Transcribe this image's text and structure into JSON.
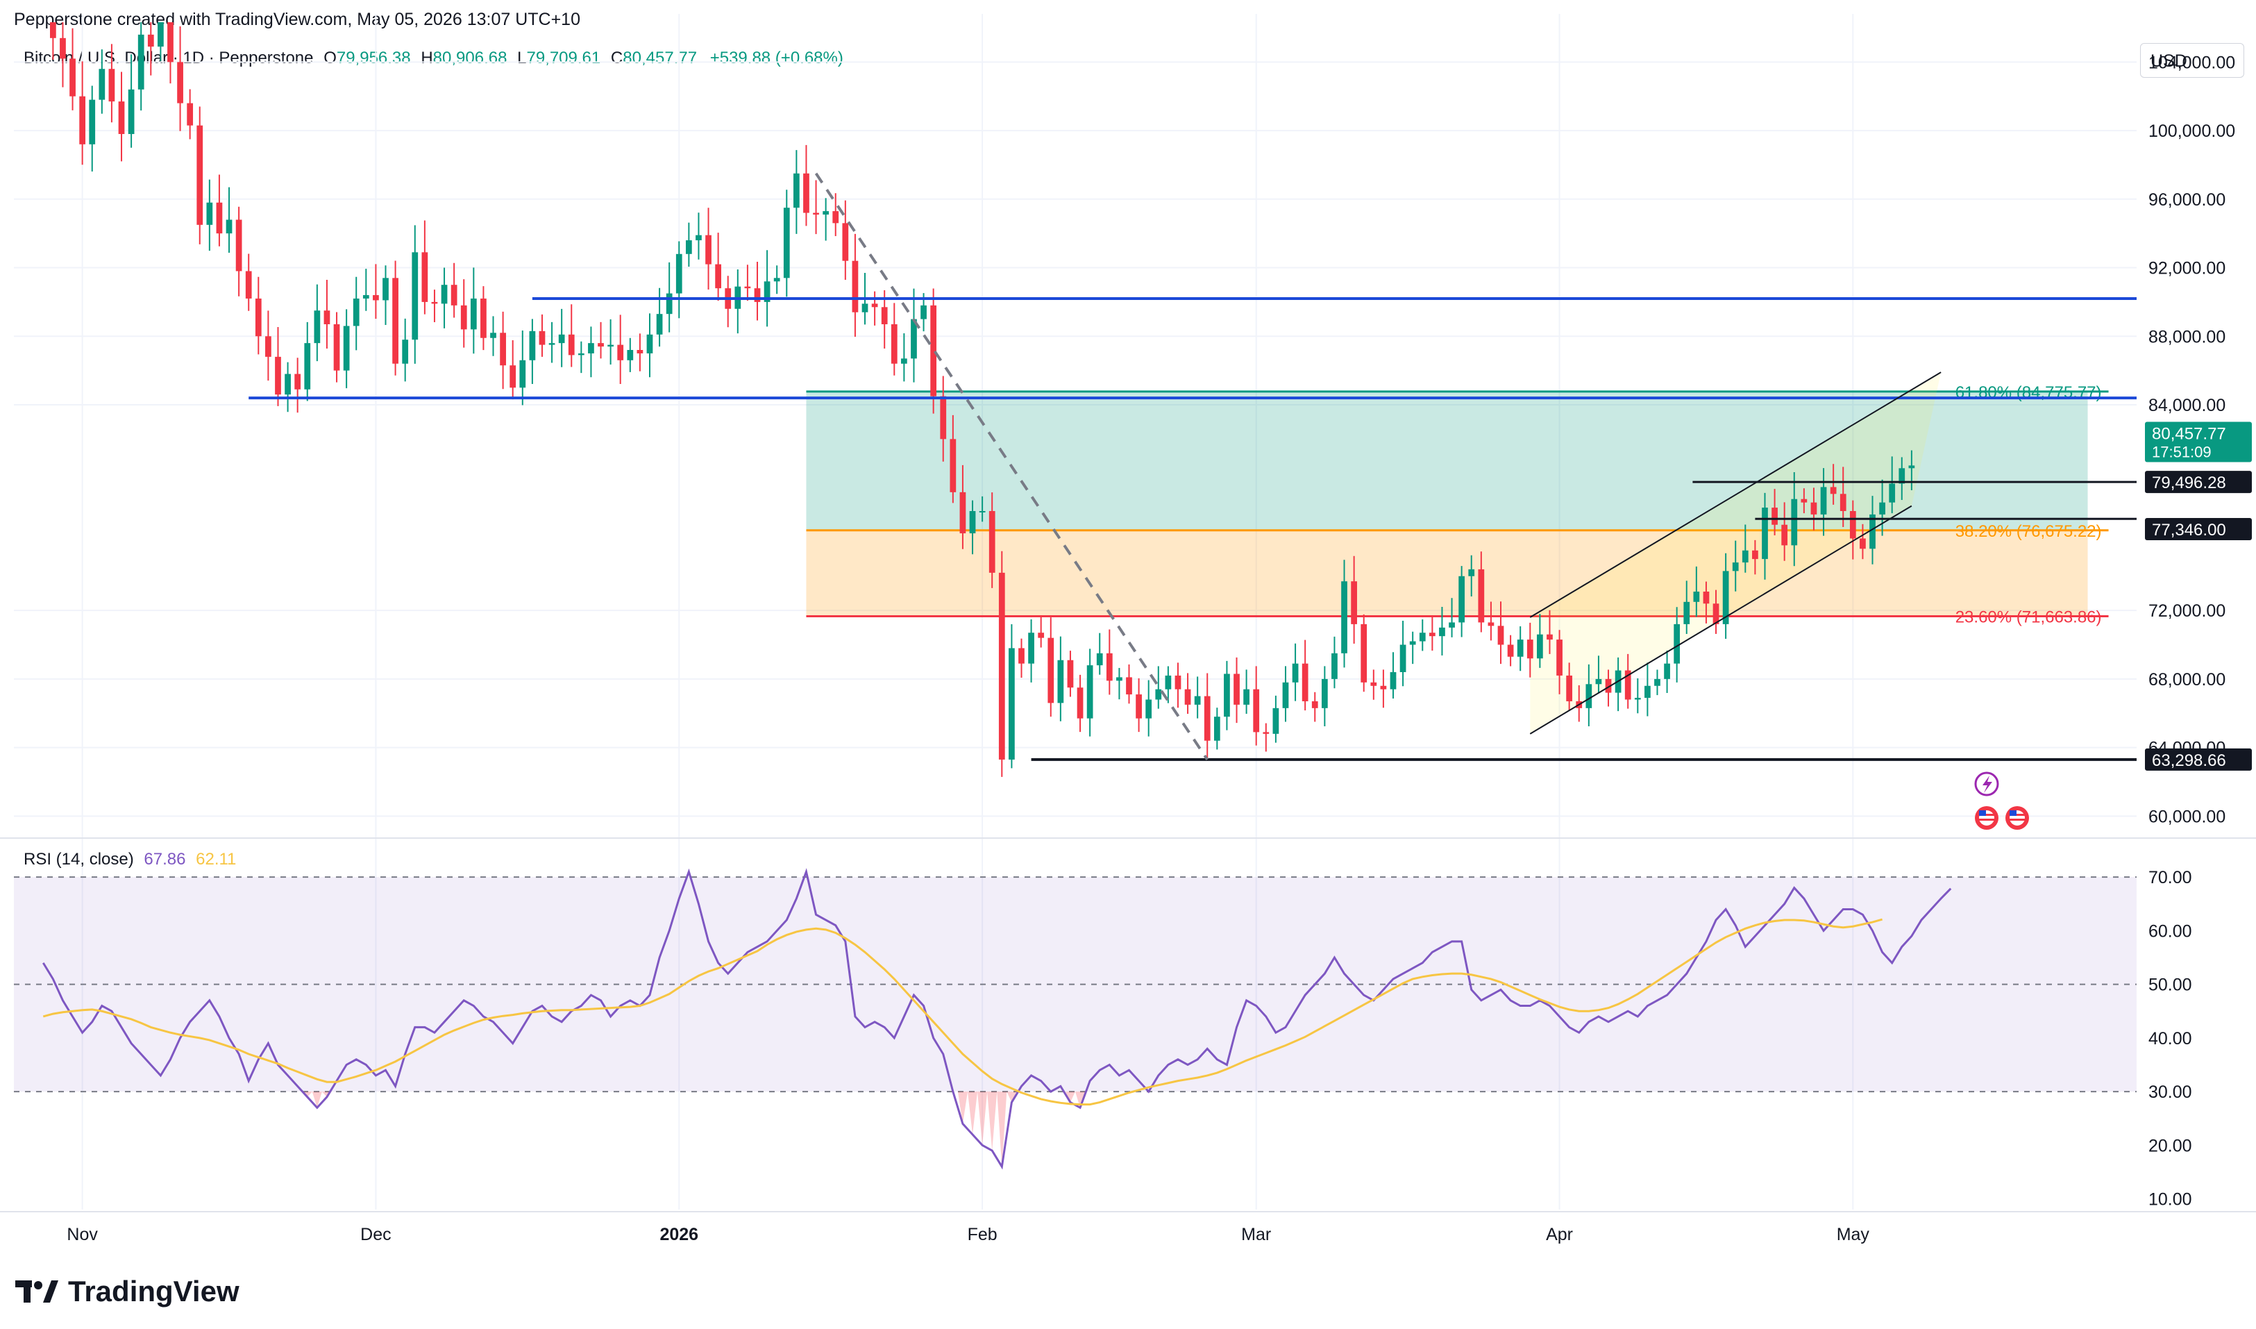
{
  "header": "Pepperstone created with TradingView.com, May 05, 2026 13:07 UTC+10",
  "legend": {
    "symbol": "Bitcoin / U.S. Dollar · 1D · Pepperstone",
    "o_label": "O",
    "o": "79,956.38",
    "h_label": "H",
    "h": "80,906.68",
    "l_label": "L",
    "l": "79,709.61",
    "c_label": "C",
    "c": "80,457.77",
    "change": "+539.88 (+0.68%)"
  },
  "currency": "USD",
  "rsi_legend": {
    "name": "RSI (14, close)",
    "rsi": "67.86",
    "ma": "62.11"
  },
  "brand": "TradingView",
  "colors": {
    "up": "#089981",
    "down": "#f23645",
    "support": "#1c49d8",
    "rsi": "#7e57c2",
    "rsi_ma": "#f7c543"
  },
  "chart_data": [
    {
      "type": "candlestick",
      "ylim": [
        59000,
        106000
      ],
      "ticks": [
        {
          "value": 104000,
          "label": "104,000.00"
        },
        {
          "value": 100000,
          "label": "100,000.00"
        },
        {
          "value": 96000,
          "label": "96,000.00"
        },
        {
          "value": 92000,
          "label": "92,000.00"
        },
        {
          "value": 88000,
          "label": "88,000.00"
        },
        {
          "value": 84000,
          "label": "84,000.00"
        },
        {
          "value": 72000,
          "label": "72,000.00"
        },
        {
          "value": 68000,
          "label": "68,000.00"
        },
        {
          "value": 64000,
          "label": "64,000.00"
        },
        {
          "value": 60000,
          "label": "60,000.00"
        }
      ],
      "x_labels": [
        {
          "date": "2025-11-01",
          "label": "Nov"
        },
        {
          "date": "2025-12-01",
          "label": "Dec"
        },
        {
          "date": "2026-01-01",
          "label": "2026"
        },
        {
          "date": "2026-02-01",
          "label": "Feb"
        },
        {
          "date": "2026-03-01",
          "label": "Mar"
        },
        {
          "date": "2026-04-01",
          "label": "Apr"
        },
        {
          "date": "2026-05-01",
          "label": "May"
        }
      ],
      "x_range": [
        "2025-10-25",
        "2026-05-30"
      ],
      "candles_start": "2025-10-28",
      "closes": [
        108400,
        105400,
        104200,
        102000,
        99200,
        101800,
        103600,
        101700,
        99800,
        102400,
        105600,
        104900,
        107200,
        104000,
        101600,
        100300,
        94500,
        95800,
        94000,
        94800,
        91800,
        90200,
        88000,
        86800,
        84600,
        85800,
        84900,
        87600,
        89500,
        88700,
        86000,
        88600,
        90200,
        90400,
        90100,
        91400,
        86400,
        87800,
        92900,
        90000,
        89900,
        91000,
        89800,
        88400,
        90200,
        87900,
        88200,
        86300,
        85000,
        86600,
        88300,
        87500,
        87600,
        88100,
        86900,
        87000,
        87600,
        87400,
        87500,
        86600,
        87200,
        87000,
        88100,
        89300,
        90500,
        92800,
        93600,
        93900,
        92200,
        90800,
        89600,
        90900,
        90800,
        90000,
        91200,
        91400,
        95500,
        97500,
        95200,
        95100,
        95300,
        94600,
        92400,
        89400,
        89900,
        89700,
        88700,
        86400,
        86700,
        89000,
        89800,
        84500,
        82000,
        78900,
        76500,
        77800,
        77800,
        74200,
        63298,
        69800,
        68900,
        70700,
        70400,
        66600,
        69100,
        67500,
        65700,
        68800,
        69500,
        67900,
        68100,
        67100,
        65700,
        66800,
        67400,
        68200,
        67400,
        66500,
        67000,
        64400,
        65800,
        68300,
        66500,
        67400,
        64900,
        64800,
        66300,
        67800,
        68900,
        66700,
        66300,
        68000,
        69500,
        73700,
        71200,
        67800,
        67600,
        67400,
        68400,
        70000,
        70200,
        70700,
        70500,
        71000,
        71300,
        74000,
        74400,
        71300,
        71100,
        70000,
        69300,
        70300,
        69200,
        70600,
        70300,
        68200,
        66700,
        66300,
        67700,
        68000,
        67200,
        68500,
        66800,
        66900,
        67600,
        68000,
        68900,
        71200,
        72500,
        73100,
        72400,
        71200,
        74300,
        74800,
        75500,
        75000,
        78000,
        77000,
        75800,
        78500,
        78300,
        77600,
        79200,
        78800,
        77800,
        76200,
        75600,
        77600,
        78300,
        79400,
        80300,
        80457.77
      ],
      "support_lines": [
        {
          "value": 90200,
          "from": "2025-12-17",
          "label": ""
        },
        {
          "value": 84400,
          "from": "2025-11-18",
          "label": ""
        },
        {
          "value": 63298.66,
          "from": "2026-02-06",
          "label": "63,298.66"
        }
      ],
      "fibonacci": [
        {
          "level": "61.80%",
          "value": 84775.77,
          "label": "61.80% (84,775.77)"
        },
        {
          "level": "38.20%",
          "value": 76675.22,
          "label": "38.20% (76,675.22)"
        },
        {
          "level": "23.60%",
          "value": 71663.86,
          "label": "23.60% (71,663.86)"
        }
      ],
      "fib_box": {
        "from": "2026-01-14",
        "to": "2026-05-25"
      },
      "horizontal_levels": [
        {
          "value": 79496.28,
          "label": "79,496.28"
        },
        {
          "value": 77346.0,
          "label": "77,346.00"
        }
      ],
      "last_price": {
        "value": 80457.77,
        "label": "80,457.77",
        "countdown": "17:51:09"
      },
      "trend_line": {
        "from": [
          "2026-01-15",
          97500
        ],
        "to": [
          "2026-02-24",
          63298
        ]
      },
      "channel": {
        "lower": {
          "from": [
            "2026-03-29",
            64800
          ],
          "to": [
            "2026-05-07",
            78100
          ]
        },
        "upper": {
          "from": [
            "2026-03-29",
            71600
          ],
          "to": [
            "2026-05-10",
            85900
          ]
        }
      }
    },
    {
      "type": "line",
      "title": "RSI (14, close)",
      "ylim": [
        8,
        73
      ],
      "ticks": [
        {
          "value": 70,
          "label": "70.00"
        },
        {
          "value": 60,
          "label": "60.00"
        },
        {
          "value": 50,
          "label": "50.00"
        },
        {
          "value": 40,
          "label": "40.00"
        },
        {
          "value": 30,
          "label": "30.00"
        },
        {
          "value": 20,
          "label": "20.00"
        },
        {
          "value": 10,
          "label": "10.00"
        }
      ],
      "bands": {
        "upper": 70,
        "middle": 50,
        "lower": 30
      },
      "series": [
        {
          "name": "RSI",
          "values": [
            54,
            51,
            47,
            44,
            41,
            43,
            46,
            45,
            42,
            39,
            37,
            35,
            33,
            36,
            40,
            43,
            45,
            47,
            44,
            40,
            37,
            32,
            36,
            39,
            35,
            33,
            31,
            29,
            27,
            29,
            32,
            35,
            36,
            35,
            33,
            34,
            31,
            37,
            42,
            42,
            41,
            43,
            45,
            47,
            46,
            44,
            43,
            41,
            39,
            42,
            45,
            46,
            44,
            43,
            45,
            46,
            48,
            47,
            44,
            46,
            47,
            46,
            48,
            55,
            60,
            66,
            71,
            65,
            58,
            54,
            52,
            54,
            56,
            57,
            58,
            60,
            62,
            66,
            71,
            63,
            62,
            61,
            58,
            44,
            42,
            43,
            42,
            40,
            44,
            48,
            46,
            40,
            37,
            30,
            24,
            22,
            20,
            19,
            16,
            28,
            31,
            33,
            32,
            30,
            31,
            28,
            27,
            32,
            34,
            35,
            33,
            34,
            32,
            30,
            33,
            35,
            36,
            35,
            36,
            38,
            36,
            35,
            42,
            47,
            46,
            44,
            41,
            42,
            45,
            48,
            50,
            52,
            55,
            52,
            50,
            48,
            47,
            49,
            51,
            52,
            53,
            54,
            56,
            57,
            58,
            58,
            49,
            47,
            48,
            49,
            47,
            46,
            46,
            47,
            46,
            44,
            42,
            41,
            43,
            44,
            43,
            44,
            45,
            44,
            46,
            47,
            48,
            50,
            52,
            55,
            58,
            62,
            64,
            61,
            57,
            59,
            61,
            63,
            65,
            68,
            66,
            63,
            60,
            62,
            64,
            64,
            63,
            60,
            56,
            54,
            57,
            59,
            62,
            64,
            66,
            67.86
          ]
        },
        {
          "name": "RSI-based MA",
          "values": [
            44,
            44.5,
            44.8,
            45,
            45.2,
            45.3,
            45,
            44.5,
            44,
            43.5,
            42.8,
            42,
            41.5,
            41,
            40.6,
            40.3,
            40,
            39.6,
            39,
            38.4,
            37.8,
            37,
            36.4,
            35.8,
            35.2,
            34.4,
            33.7,
            33,
            32.3,
            31.8,
            31.8,
            32.3,
            32.8,
            33.4,
            34,
            34.8,
            35.6,
            36.6,
            37.6,
            38.6,
            39.6,
            40.6,
            41.4,
            42.1,
            42.8,
            43.4,
            43.8,
            44.1,
            44.3,
            44.6,
            44.8,
            45,
            45.1,
            45.2,
            45.2,
            45.3,
            45.4,
            45.5,
            45.6,
            45.7,
            45.8,
            46,
            46.6,
            47.4,
            48.2,
            49.4,
            50.6,
            51.6,
            52.4,
            53,
            53.8,
            54.6,
            55.4,
            56.2,
            57.4,
            58.4,
            59.2,
            59.8,
            60.2,
            60.4,
            60.2,
            59.6,
            58.6,
            57.4,
            56,
            54.4,
            52.8,
            51,
            49,
            47,
            45,
            43,
            41,
            39,
            37,
            35.4,
            33.8,
            32.4,
            31.4,
            30.6,
            29.8,
            29.2,
            28.6,
            28.2,
            27.9,
            27.7,
            27.6,
            27.6,
            28,
            28.6,
            29.2,
            29.8,
            30.3,
            30.8,
            31.2,
            31.6,
            32,
            32.3,
            32.6,
            33,
            33.5,
            34.2,
            35,
            35.8,
            36.5,
            37.2,
            37.9,
            38.6,
            39.4,
            40.2,
            41.2,
            42.2,
            43.2,
            44.2,
            45.2,
            46.2,
            47.2,
            48.2,
            49.2,
            50.2,
            51,
            51.4,
            51.7,
            51.9,
            52,
            52,
            51.8,
            51.4,
            51,
            50.4,
            49.6,
            48.8,
            48,
            47.2,
            46.5,
            45.8,
            45.3,
            45,
            45,
            45.2,
            45.6,
            46.3,
            47.2,
            48.2,
            49.4,
            50.6,
            51.8,
            53,
            54.2,
            55.4,
            56.6,
            57.8,
            58.8,
            59.6,
            60.4,
            61,
            61.5,
            61.8,
            62,
            62,
            61.9,
            61.6,
            61.2,
            60.8,
            60.6,
            60.8,
            61.2,
            61.6,
            62.11
          ]
        }
      ]
    }
  ]
}
